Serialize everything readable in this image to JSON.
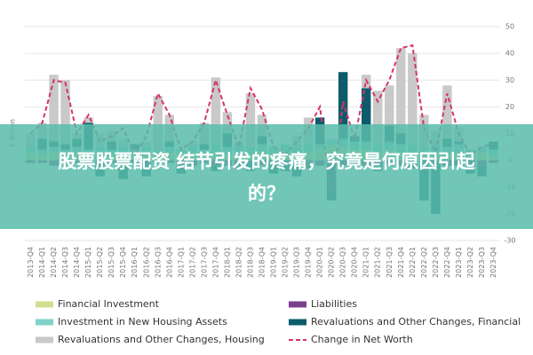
{
  "chart_data": {
    "type": "bar",
    "stacked": true,
    "y_label": "€ Billion",
    "grid": true,
    "categories": [
      "2013-Q4",
      "2014-Q1",
      "2014-Q2",
      "2014-Q3",
      "2014-Q4",
      "2015-Q1",
      "2015-Q2",
      "2015-Q3",
      "2015-Q4",
      "2016-Q1",
      "2016-Q2",
      "2016-Q3",
      "2016-Q4",
      "2017-Q1",
      "2017-Q2",
      "2017-Q3",
      "2017-Q4",
      "2018-Q1",
      "2018-Q2",
      "2018-Q3",
      "2018-Q4",
      "2019-Q1",
      "2019-Q2",
      "2019-Q3",
      "2019-Q4",
      "2020-Q1",
      "2020-Q2",
      "2020-Q3",
      "2020-Q4",
      "2021-Q1",
      "2021-Q2",
      "2021-Q3",
      "2021-Q4",
      "2022-Q1",
      "2022-Q2",
      "2022-Q3",
      "2022-Q4",
      "2023-Q1",
      "2023-Q2",
      "2023-Q3",
      "2023-Q4"
    ],
    "ylim": [
      -30,
      50
    ],
    "yticks": [
      -30,
      -20,
      -10,
      0,
      10,
      20,
      30,
      40,
      50
    ],
    "series": [
      {
        "name": "Financial Investment",
        "color": "#d4dd8e",
        "values": [
          3,
          2,
          3,
          2,
          3,
          2,
          3,
          2,
          3,
          2,
          3,
          2,
          3,
          2,
          3,
          2,
          3,
          2,
          3,
          2,
          3,
          2,
          3,
          2,
          3,
          4,
          6,
          5,
          4,
          4,
          3,
          4,
          3,
          3,
          2,
          3,
          2,
          3,
          2,
          3,
          2
        ]
      },
      {
        "name": "Liabilities",
        "color": "#7b3f8f",
        "values": [
          -1,
          -1,
          -2,
          -1,
          -1,
          -1,
          -2,
          -1,
          -1,
          -1,
          -2,
          -1,
          -1,
          -2,
          -2,
          -1,
          -2,
          -2,
          -2,
          -1,
          -2,
          -2,
          -2,
          -1,
          -2,
          -2,
          -1,
          -2,
          -2,
          -2,
          -2,
          -2,
          -2,
          -2,
          -2,
          -2,
          -2,
          -2,
          -2,
          -2,
          -1
        ]
      },
      {
        "name": "Investment in New Housing Assets",
        "color": "#7fd3c8",
        "values": [
          2,
          2,
          2,
          2,
          2,
          2,
          2,
          2,
          2,
          2,
          2,
          2,
          2,
          2,
          2,
          2,
          3,
          3,
          3,
          3,
          3,
          3,
          3,
          3,
          3,
          2,
          2,
          3,
          3,
          3,
          3,
          3,
          3,
          3,
          3,
          3,
          3,
          3,
          2,
          2,
          2
        ]
      },
      {
        "name": "Revaluations and Other Changes, Financial",
        "color": "#0e5c6b",
        "values": [
          0,
          4,
          2,
          2,
          3,
          10,
          -4,
          3,
          -6,
          2,
          -4,
          0,
          2,
          -3,
          0,
          2,
          -2,
          5,
          -1,
          -3,
          3,
          -3,
          -2,
          -5,
          -1,
          10,
          -14,
          25,
          2,
          20,
          -2,
          6,
          4,
          -1,
          -13,
          -18,
          3,
          1,
          -3,
          -4,
          3
        ]
      },
      {
        "name": "Revaluations and Other Changes, Housing",
        "color": "#c9c9c9",
        "values": [
          5,
          6,
          25,
          24,
          2,
          2,
          5,
          4,
          3,
          0,
          2,
          20,
          10,
          0,
          2,
          8,
          25,
          8,
          1,
          20,
          8,
          0,
          0,
          4,
          10,
          0,
          0,
          0,
          0,
          5,
          20,
          15,
          32,
          34,
          12,
          5,
          20,
          5,
          0,
          0,
          0
        ]
      },
      {
        "name": "Change in Net Worth",
        "color": "#d6336c",
        "type": "line",
        "dashed": true,
        "values": [
          10,
          14,
          30,
          29,
          10,
          17,
          7,
          9,
          12,
          2,
          9,
          25,
          17,
          4,
          7,
          14,
          30,
          17,
          5,
          27,
          19,
          5,
          2,
          7,
          12,
          20,
          -14,
          22,
          8,
          30,
          22,
          30,
          42,
          43,
          12,
          3,
          25,
          10,
          2,
          5,
          6
        ]
      }
    ]
  },
  "overlay": {
    "lines": [
      "股票股票配资 结节引发的疼痛，究竟是何原因引起",
      "的？"
    ]
  }
}
